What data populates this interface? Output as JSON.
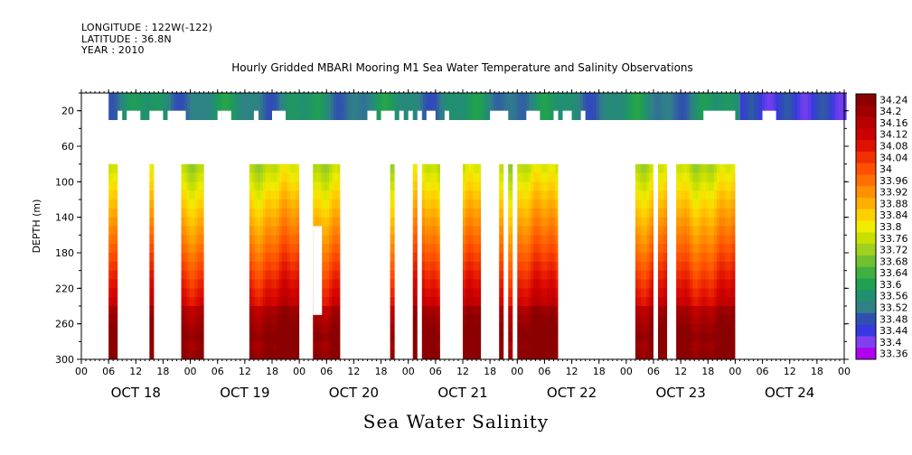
{
  "header": {
    "longitude": "LONGITUDE : 122W(-122)",
    "latitude": "LATITUDE : 36.8N",
    "year": "YEAR : 2010"
  },
  "chart_data": {
    "type": "heatmap",
    "title": "Hourly Gridded MBARI Mooring M1 Sea Water Temperature and Salinity Observations",
    "variable_title": "Sea Water Salinity",
    "ylabel": "DEPTH (m)",
    "ylim": [
      300,
      0
    ],
    "y_axis_inverted": true,
    "y_ticks": [
      20,
      60,
      100,
      140,
      180,
      220,
      260,
      300
    ],
    "x_hour_labels": [
      "00",
      "06",
      "12",
      "18",
      "00",
      "06",
      "12",
      "18",
      "00",
      "06",
      "12",
      "18",
      "00",
      "06",
      "12",
      "18",
      "00",
      "06",
      "12",
      "18",
      "00",
      "06",
      "12",
      "18",
      "00",
      "06",
      "12",
      "18",
      "00"
    ],
    "days": [
      "OCT 18",
      "OCT 19",
      "OCT 20",
      "OCT 21",
      "OCT 22",
      "OCT 23",
      "OCT 24"
    ],
    "colorbar": {
      "levels": [
        "34.24",
        "34.2",
        "34.16",
        "34.12",
        "34.08",
        "34.04",
        "34",
        "33.96",
        "33.92",
        "33.88",
        "33.84",
        "33.8",
        "33.76",
        "33.72",
        "33.68",
        "33.64",
        "33.6",
        "33.56",
        "33.52",
        "33.48",
        "33.44",
        "33.4",
        "33.36"
      ],
      "colors": [
        "#8b0000",
        "#a00000",
        "#b80000",
        "#cc0000",
        "#e01000",
        "#f03000",
        "#ff5000",
        "#ff7000",
        "#ff9000",
        "#ffb000",
        "#ffd000",
        "#f0ec00",
        "#c8e000",
        "#a0d020",
        "#70c030",
        "#40b040",
        "#20a050",
        "#209070",
        "#308088",
        "#3050b0",
        "#3838e0",
        "#8040f0",
        "#b000f0"
      ]
    },
    "gaps_hours": [
      [
        8,
        9
      ],
      [
        10,
        13
      ],
      [
        15,
        18
      ],
      [
        19,
        23
      ],
      [
        30,
        31
      ],
      [
        31,
        33
      ],
      [
        38,
        39
      ],
      [
        42,
        45
      ],
      [
        63,
        65
      ],
      [
        66,
        69
      ],
      [
        70,
        71
      ],
      [
        72,
        73
      ],
      [
        74,
        75
      ],
      [
        76,
        78
      ],
      [
        80,
        81
      ],
      [
        90,
        94
      ],
      [
        98,
        101
      ],
      [
        104,
        105
      ],
      [
        106,
        108
      ],
      [
        110,
        111
      ],
      [
        137,
        144
      ],
      [
        150,
        153
      ]
    ],
    "upper_gap_depth_m": [
      30,
      80
    ],
    "lower_profile_intervals_hours": [
      [
        6,
        8
      ],
      [
        15,
        16
      ],
      [
        22,
        27
      ],
      [
        37,
        48
      ],
      [
        51,
        57
      ],
      [
        68,
        69
      ],
      [
        73,
        74
      ],
      [
        75,
        79
      ],
      [
        84,
        88
      ],
      [
        92,
        93
      ],
      [
        94,
        95
      ],
      [
        96,
        105
      ],
      [
        122,
        126
      ],
      [
        127,
        129
      ],
      [
        131,
        144
      ]
    ]
  }
}
